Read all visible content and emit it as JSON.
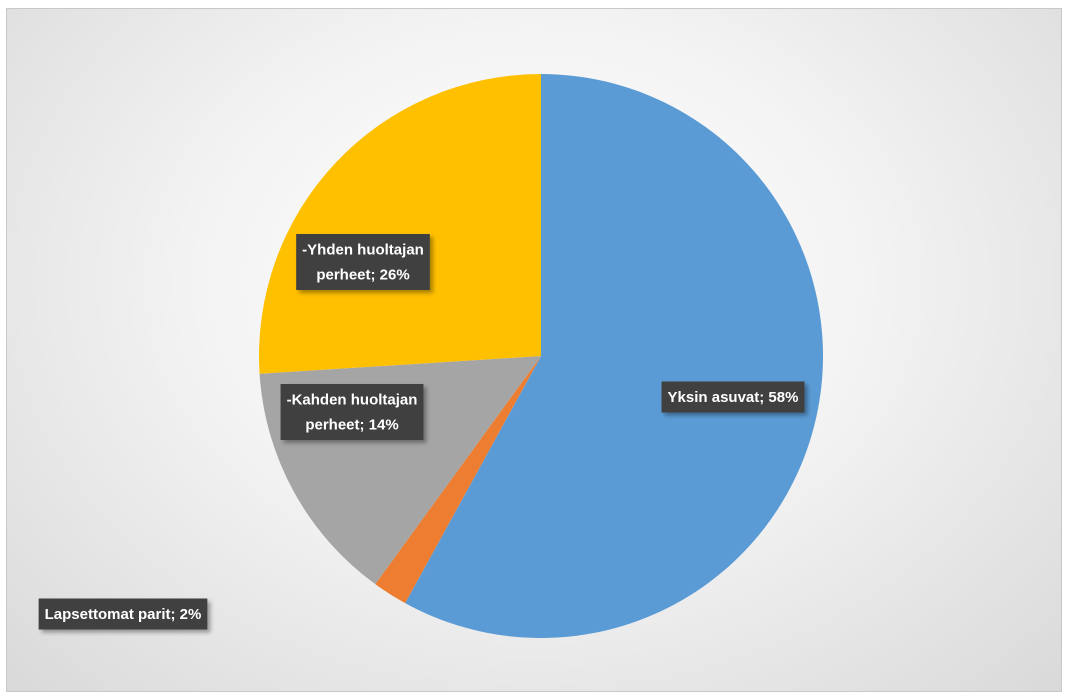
{
  "chart_data": {
    "type": "pie",
    "title": "",
    "series": [
      {
        "values": [
          58,
          2,
          14,
          26
        ],
        "categories": [
          "Yksin asuvat",
          "Lapsettomat parit",
          "-Kahden huoltajan perheet",
          "-Yhden huoltajan perheet"
        ],
        "colors": [
          "#5B9BD5",
          "#ED7D31",
          "#A5A5A5",
          "#FFC000"
        ]
      }
    ],
    "data_labels": [
      [
        "Yksin asuvat; 58%"
      ],
      [
        "Lapsettomat parit; 2%"
      ],
      [
        "-Kahden huoltajan",
        "perheet; 14%"
      ],
      [
        "-Yhden huoltajan",
        "perheet; 26%"
      ]
    ],
    "legend": "none"
  }
}
